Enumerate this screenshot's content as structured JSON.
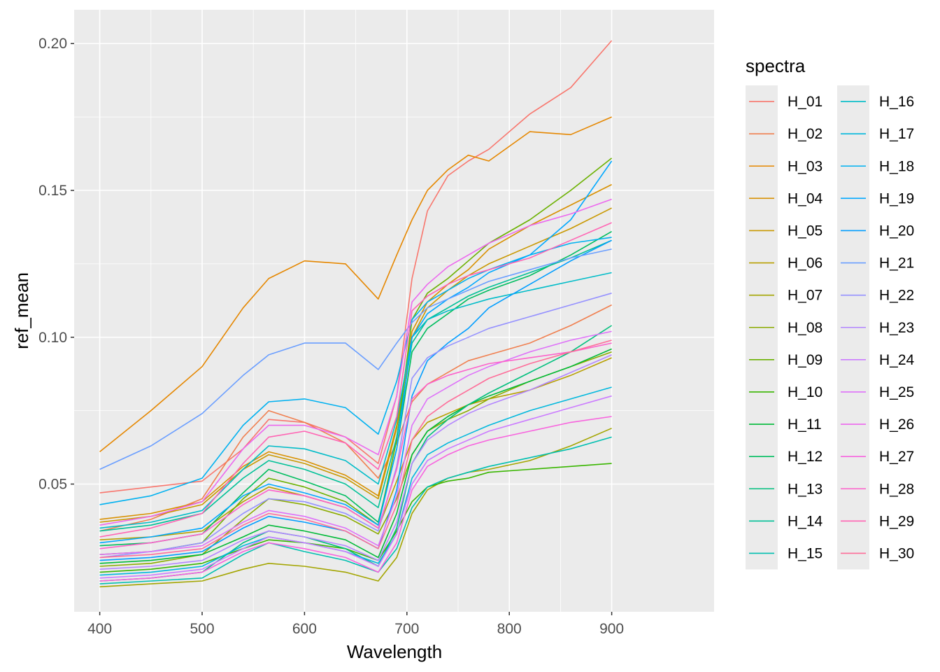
{
  "chart_data": {
    "type": "line",
    "xlabel": "Wavelength",
    "ylabel": "ref_mean",
    "xlim": [
      375,
      1000
    ],
    "ylim": [
      0.0065,
      0.2115
    ],
    "x_ticks": [
      400,
      500,
      600,
      700,
      800,
      900
    ],
    "x_tick_labels": [
      "400",
      "500",
      "600",
      "700",
      "800",
      "900"
    ],
    "y_ticks": [
      0.05,
      0.1,
      0.15,
      0.2
    ],
    "y_tick_labels": [
      "0.05",
      "0.10",
      "0.15",
      "0.20"
    ],
    "grid": true,
    "legend": {
      "title": "spectra",
      "position": "right",
      "columns": 2
    },
    "x": [
      400,
      450,
      500,
      540,
      565,
      600,
      640,
      672,
      690,
      705,
      720,
      740,
      760,
      780,
      820,
      860,
      900
    ],
    "series": [
      {
        "name": "H_01",
        "color": "#F8766D",
        "values": [
          0.047,
          0.049,
          0.051,
          0.062,
          0.072,
          0.071,
          0.066,
          0.057,
          0.08,
          0.12,
          0.143,
          0.155,
          0.16,
          0.164,
          0.176,
          0.185,
          0.201
        ]
      },
      {
        "name": "H_02",
        "color": "#F07F4F",
        "values": [
          0.034,
          0.038,
          0.045,
          0.066,
          0.075,
          0.071,
          0.064,
          0.052,
          0.064,
          0.078,
          0.084,
          0.088,
          0.092,
          0.094,
          0.098,
          0.104,
          0.111
        ]
      },
      {
        "name": "H_03",
        "color": "#E58700",
        "values": [
          0.061,
          0.075,
          0.09,
          0.11,
          0.12,
          0.126,
          0.125,
          0.113,
          0.128,
          0.14,
          0.15,
          0.157,
          0.162,
          0.16,
          0.17,
          0.169,
          0.175
        ]
      },
      {
        "name": "H_04",
        "color": "#D89000",
        "values": [
          0.038,
          0.04,
          0.044,
          0.056,
          0.061,
          0.058,
          0.053,
          0.046,
          0.07,
          0.102,
          0.112,
          0.118,
          0.123,
          0.13,
          0.138,
          0.145,
          0.152
        ]
      },
      {
        "name": "H_05",
        "color": "#C99800",
        "values": [
          0.037,
          0.039,
          0.043,
          0.055,
          0.06,
          0.057,
          0.052,
          0.045,
          0.069,
          0.1,
          0.11,
          0.116,
          0.121,
          0.125,
          0.131,
          0.137,
          0.144
        ]
      },
      {
        "name": "H_06",
        "color": "#B79F00",
        "values": [
          0.031,
          0.032,
          0.034,
          0.044,
          0.049,
          0.046,
          0.042,
          0.035,
          0.051,
          0.065,
          0.071,
          0.074,
          0.077,
          0.079,
          0.082,
          0.087,
          0.093
        ]
      },
      {
        "name": "H_07",
        "color": "#A3A500",
        "values": [
          0.015,
          0.016,
          0.017,
          0.021,
          0.023,
          0.022,
          0.02,
          0.017,
          0.025,
          0.04,
          0.048,
          0.052,
          0.054,
          0.055,
          0.058,
          0.063,
          0.069
        ]
      },
      {
        "name": "H_08",
        "color": "#8BAB00",
        "values": [
          0.022,
          0.023,
          0.026,
          0.038,
          0.045,
          0.043,
          0.039,
          0.033,
          0.045,
          0.06,
          0.068,
          0.072,
          0.075,
          0.079,
          0.085,
          0.09,
          0.095
        ]
      },
      {
        "name": "H_09",
        "color": "#6BB100",
        "values": [
          0.026,
          0.027,
          0.03,
          0.045,
          0.052,
          0.049,
          0.044,
          0.036,
          0.065,
          0.106,
          0.115,
          0.12,
          0.126,
          0.132,
          0.14,
          0.15,
          0.161
        ]
      },
      {
        "name": "H_10",
        "color": "#39B600",
        "values": [
          0.02,
          0.021,
          0.023,
          0.028,
          0.031,
          0.03,
          0.028,
          0.024,
          0.034,
          0.044,
          0.049,
          0.051,
          0.052,
          0.054,
          0.055,
          0.056,
          0.057
        ]
      },
      {
        "name": "H_11",
        "color": "#00BA38",
        "values": [
          0.023,
          0.024,
          0.026,
          0.032,
          0.036,
          0.034,
          0.031,
          0.025,
          0.04,
          0.06,
          0.068,
          0.073,
          0.077,
          0.08,
          0.085,
          0.09,
          0.096
        ]
      },
      {
        "name": "H_12",
        "color": "#00BD5F",
        "values": [
          0.029,
          0.03,
          0.033,
          0.047,
          0.055,
          0.051,
          0.046,
          0.037,
          0.062,
          0.095,
          0.103,
          0.108,
          0.113,
          0.116,
          0.121,
          0.128,
          0.136
        ]
      },
      {
        "name": "H_13",
        "color": "#00BF7D",
        "values": [
          0.017,
          0.018,
          0.02,
          0.03,
          0.034,
          0.032,
          0.028,
          0.022,
          0.035,
          0.057,
          0.066,
          0.072,
          0.077,
          0.081,
          0.088,
          0.095,
          0.104
        ]
      },
      {
        "name": "H_14",
        "color": "#00C097",
        "values": [
          0.034,
          0.036,
          0.04,
          0.052,
          0.058,
          0.055,
          0.05,
          0.042,
          0.066,
          0.098,
          0.106,
          0.11,
          0.114,
          0.117,
          0.122,
          0.127,
          0.133
        ]
      },
      {
        "name": "H_15",
        "color": "#00BFB0",
        "values": [
          0.016,
          0.017,
          0.018,
          0.026,
          0.03,
          0.027,
          0.024,
          0.02,
          0.028,
          0.042,
          0.049,
          0.052,
          0.054,
          0.056,
          0.059,
          0.062,
          0.066
        ]
      },
      {
        "name": "H_16",
        "color": "#00BCC8",
        "values": [
          0.035,
          0.037,
          0.041,
          0.055,
          0.063,
          0.062,
          0.058,
          0.05,
          0.072,
          0.1,
          0.106,
          0.109,
          0.111,
          0.113,
          0.116,
          0.119,
          0.122
        ]
      },
      {
        "name": "H_17",
        "color": "#00B8DD",
        "values": [
          0.019,
          0.02,
          0.022,
          0.029,
          0.032,
          0.03,
          0.027,
          0.023,
          0.033,
          0.052,
          0.06,
          0.064,
          0.067,
          0.07,
          0.075,
          0.079,
          0.083
        ]
      },
      {
        "name": "H_18",
        "color": "#00B1F0",
        "values": [
          0.043,
          0.046,
          0.052,
          0.07,
          0.078,
          0.079,
          0.076,
          0.067,
          0.085,
          0.106,
          0.112,
          0.116,
          0.12,
          0.123,
          0.128,
          0.132,
          0.134
        ]
      },
      {
        "name": "H_19",
        "color": "#00A8FF",
        "values": [
          0.03,
          0.032,
          0.035,
          0.046,
          0.05,
          0.047,
          0.043,
          0.036,
          0.062,
          0.1,
          0.108,
          0.113,
          0.117,
          0.122,
          0.128,
          0.14,
          0.16
        ]
      },
      {
        "name": "H_20",
        "color": "#009DFF",
        "values": [
          0.024,
          0.025,
          0.027,
          0.035,
          0.039,
          0.037,
          0.034,
          0.028,
          0.048,
          0.08,
          0.092,
          0.098,
          0.103,
          0.11,
          0.118,
          0.126,
          0.133
        ]
      },
      {
        "name": "H_21",
        "color": "#6A9EFF",
        "values": [
          0.055,
          0.063,
          0.074,
          0.087,
          0.094,
          0.098,
          0.098,
          0.089,
          0.098,
          0.105,
          0.11,
          0.113,
          0.116,
          0.119,
          0.123,
          0.127,
          0.13
        ]
      },
      {
        "name": "H_22",
        "color": "#9591FF",
        "values": [
          0.025,
          0.027,
          0.03,
          0.04,
          0.045,
          0.044,
          0.04,
          0.034,
          0.056,
          0.086,
          0.093,
          0.097,
          0.1,
          0.103,
          0.107,
          0.111,
          0.115
        ]
      },
      {
        "name": "H_23",
        "color": "#B385FF",
        "values": [
          0.021,
          0.022,
          0.024,
          0.031,
          0.034,
          0.032,
          0.029,
          0.024,
          0.037,
          0.057,
          0.065,
          0.07,
          0.074,
          0.077,
          0.082,
          0.088,
          0.094
        ]
      },
      {
        "name": "H_24",
        "color": "#CB7BFF",
        "values": [
          0.018,
          0.019,
          0.021,
          0.028,
          0.032,
          0.03,
          0.027,
          0.022,
          0.033,
          0.05,
          0.058,
          0.062,
          0.065,
          0.068,
          0.072,
          0.076,
          0.08
        ]
      },
      {
        "name": "H_25",
        "color": "#DE71F9",
        "values": [
          0.026,
          0.027,
          0.029,
          0.037,
          0.041,
          0.039,
          0.035,
          0.029,
          0.046,
          0.07,
          0.079,
          0.083,
          0.087,
          0.09,
          0.095,
          0.099,
          0.102
        ]
      },
      {
        "name": "H_26",
        "color": "#EC68EE",
        "values": [
          0.036,
          0.039,
          0.044,
          0.062,
          0.07,
          0.07,
          0.066,
          0.06,
          0.08,
          0.112,
          0.118,
          0.124,
          0.128,
          0.132,
          0.138,
          0.142,
          0.147
        ]
      },
      {
        "name": "H_27",
        "color": "#F863DE",
        "values": [
          0.017,
          0.018,
          0.02,
          0.027,
          0.03,
          0.028,
          0.025,
          0.02,
          0.03,
          0.048,
          0.056,
          0.06,
          0.063,
          0.065,
          0.068,
          0.071,
          0.073
        ]
      },
      {
        "name": "H_28",
        "color": "#FD61CB",
        "values": [
          0.028,
          0.03,
          0.033,
          0.043,
          0.048,
          0.046,
          0.042,
          0.035,
          0.055,
          0.079,
          0.084,
          0.087,
          0.089,
          0.091,
          0.093,
          0.095,
          0.098
        ]
      },
      {
        "name": "H_29",
        "color": "#FF64B3",
        "values": [
          0.032,
          0.035,
          0.04,
          0.057,
          0.066,
          0.068,
          0.064,
          0.055,
          0.073,
          0.109,
          0.114,
          0.118,
          0.121,
          0.123,
          0.127,
          0.133,
          0.139
        ]
      },
      {
        "name": "H_30",
        "color": "#FE6D99",
        "values": [
          0.025,
          0.026,
          0.028,
          0.036,
          0.04,
          0.038,
          0.034,
          0.028,
          0.043,
          0.065,
          0.073,
          0.078,
          0.082,
          0.086,
          0.091,
          0.095,
          0.099
        ]
      }
    ]
  }
}
